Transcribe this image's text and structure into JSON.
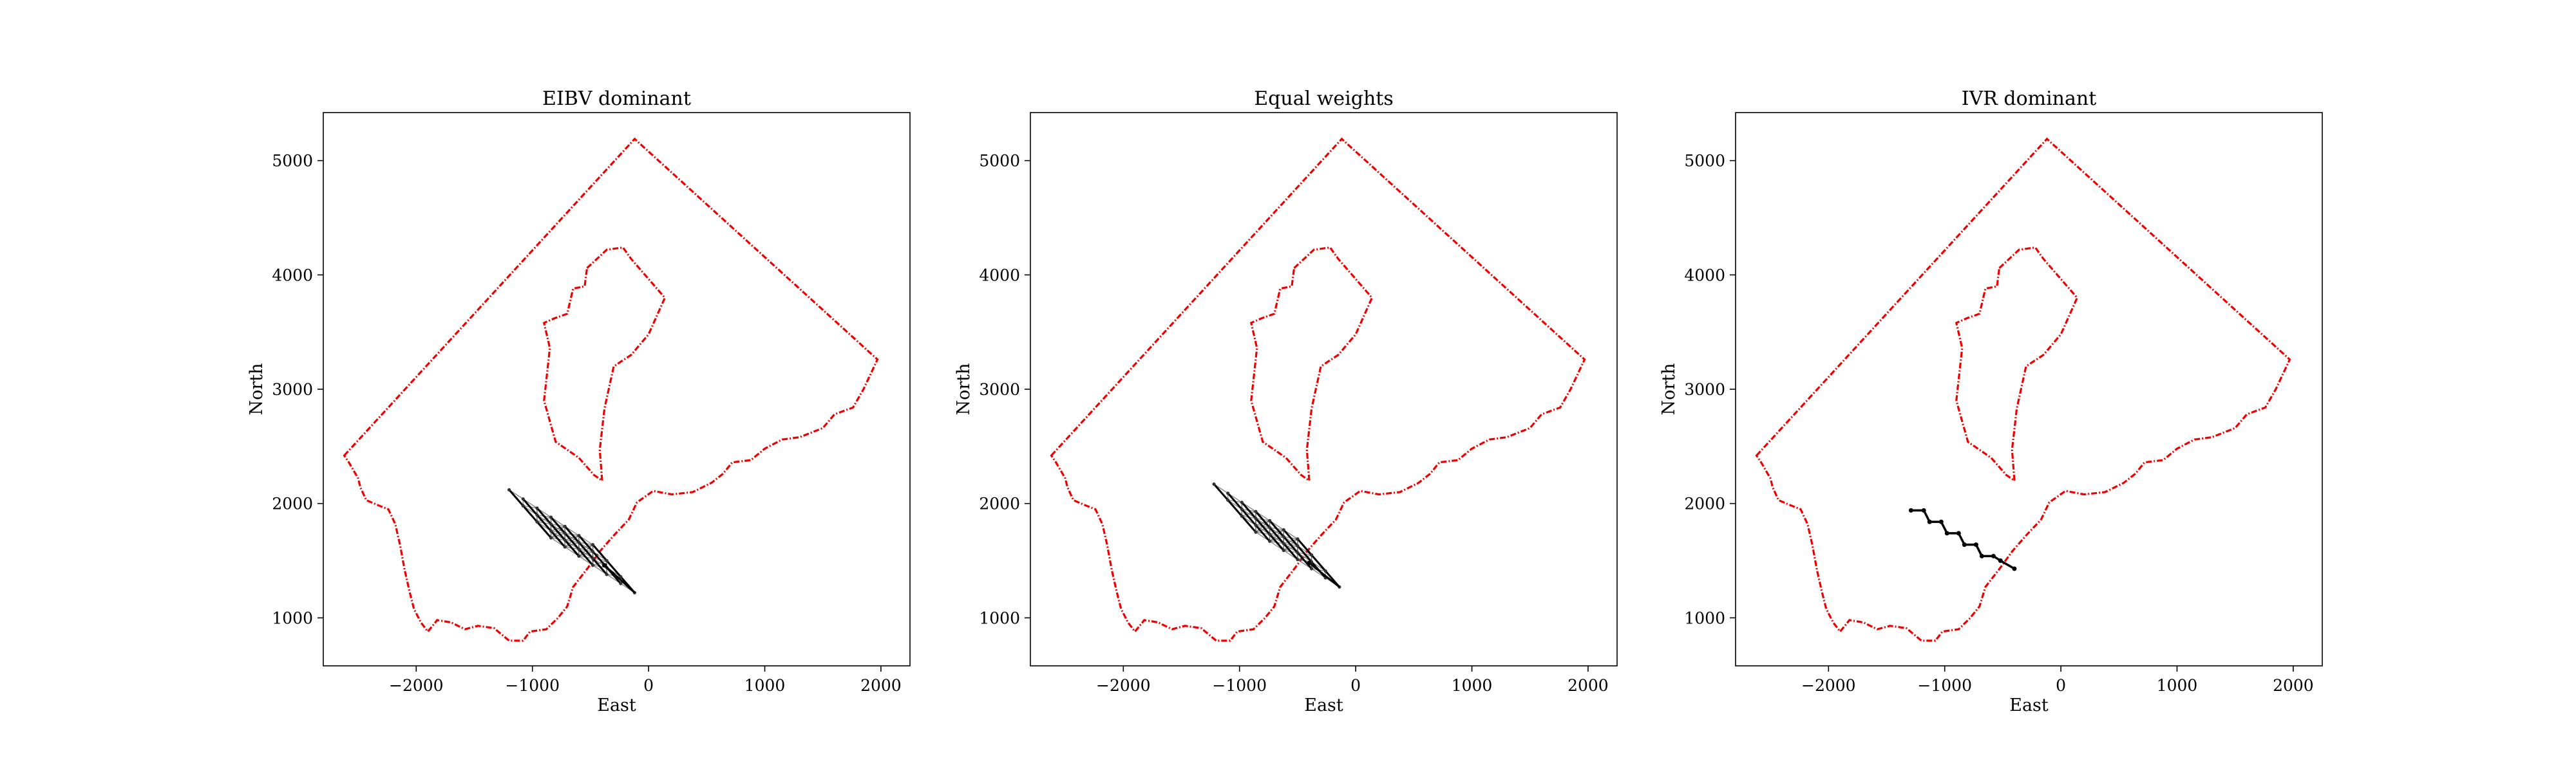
{
  "chart_data": [
    {
      "type": "line",
      "title": "EIBV dominant",
      "xlabel": "East",
      "ylabel": "North",
      "xlim": [
        -2800,
        2250
      ],
      "ylim": [
        580,
        5420
      ],
      "xticks": [
        -2000,
        -1000,
        0,
        1000,
        2000
      ],
      "yticks": [
        1000,
        2000,
        3000,
        4000,
        5000
      ],
      "xtick_labels": [
        "−2000",
        "−1000",
        "0",
        "1000",
        "2000"
      ],
      "ytick_labels": [
        "1000",
        "2000",
        "3000",
        "4000",
        "5000"
      ],
      "grid": false,
      "path_kind": "lattice",
      "path_origin": [
        -1200,
        2120
      ],
      "path_step": [
        120,
        60
      ],
      "path_end": [
        -380,
        1460
      ]
    },
    {
      "type": "line",
      "title": "Equal weights",
      "xlabel": "East",
      "ylabel": "North",
      "xlim": [
        -2800,
        2250
      ],
      "ylim": [
        580,
        5420
      ],
      "xticks": [
        -2000,
        -1000,
        0,
        1000,
        2000
      ],
      "yticks": [
        1000,
        2000,
        3000,
        4000,
        5000
      ],
      "xtick_labels": [
        "−2000",
        "−1000",
        "0",
        "1000",
        "2000"
      ],
      "ytick_labels": [
        "1000",
        "2000",
        "3000",
        "4000",
        "5000"
      ],
      "grid": false,
      "path_kind": "lattice",
      "path_origin": [
        -1220,
        2170
      ],
      "path_step": [
        120,
        60
      ],
      "path_end": [
        -400,
        1480
      ]
    },
    {
      "type": "line",
      "title": "IVR dominant",
      "xlabel": "East",
      "ylabel": "North",
      "xlim": [
        -2800,
        2250
      ],
      "ylim": [
        580,
        5420
      ],
      "xticks": [
        -2000,
        -1000,
        0,
        1000,
        2000
      ],
      "yticks": [
        1000,
        2000,
        3000,
        4000,
        5000
      ],
      "xtick_labels": [
        "−2000",
        "−1000",
        "0",
        "1000",
        "2000"
      ],
      "ytick_labels": [
        "1000",
        "2000",
        "3000",
        "4000",
        "5000"
      ],
      "grid": false,
      "path_kind": "path",
      "path": [
        [
          -1290,
          1940
        ],
        [
          -1180,
          1940
        ],
        [
          -1130,
          1840
        ],
        [
          -1030,
          1840
        ],
        [
          -980,
          1740
        ],
        [
          -880,
          1740
        ],
        [
          -830,
          1640
        ],
        [
          -730,
          1640
        ],
        [
          -680,
          1540
        ],
        [
          -580,
          1540
        ],
        [
          -520,
          1500
        ],
        [
          -400,
          1430
        ]
      ]
    }
  ],
  "boundary": {
    "outer": [
      [
        -2620,
        2420
      ],
      [
        -120,
        5190
      ],
      [
        1970,
        3260
      ],
      [
        1850,
        3000
      ],
      [
        1760,
        2840
      ],
      [
        1600,
        2780
      ],
      [
        1500,
        2660
      ],
      [
        1300,
        2580
      ],
      [
        1150,
        2560
      ],
      [
        1000,
        2480
      ],
      [
        880,
        2380
      ],
      [
        720,
        2360
      ],
      [
        640,
        2260
      ],
      [
        540,
        2180
      ],
      [
        380,
        2100
      ],
      [
        200,
        2080
      ],
      [
        40,
        2110
      ],
      [
        -100,
        2010
      ],
      [
        -170,
        1860
      ],
      [
        -300,
        1720
      ],
      [
        -420,
        1580
      ],
      [
        -520,
        1440
      ],
      [
        -650,
        1270
      ],
      [
        -700,
        1100
      ],
      [
        -780,
        1000
      ],
      [
        -880,
        900
      ],
      [
        -1020,
        880
      ],
      [
        -1080,
        800
      ],
      [
        -1200,
        800
      ],
      [
        -1330,
        910
      ],
      [
        -1470,
        930
      ],
      [
        -1580,
        900
      ],
      [
        -1700,
        960
      ],
      [
        -1820,
        980
      ],
      [
        -1900,
        880
      ],
      [
        -1960,
        960
      ],
      [
        -2020,
        1080
      ],
      [
        -2060,
        1240
      ],
      [
        -2100,
        1420
      ],
      [
        -2140,
        1640
      ],
      [
        -2180,
        1820
      ],
      [
        -2240,
        1950
      ],
      [
        -2340,
        1990
      ],
      [
        -2430,
        2030
      ],
      [
        -2480,
        2140
      ],
      [
        -2500,
        2220
      ],
      [
        -2580,
        2360
      ],
      [
        -2620,
        2420
      ]
    ],
    "island": [
      [
        -530,
        4060
      ],
      [
        -360,
        4220
      ],
      [
        -220,
        4240
      ],
      [
        -150,
        4140
      ],
      [
        140,
        3800
      ],
      [
        0,
        3480
      ],
      [
        -150,
        3300
      ],
      [
        -300,
        3200
      ],
      [
        -380,
        2830
      ],
      [
        -420,
        2470
      ],
      [
        -400,
        2200
      ],
      [
        -470,
        2250
      ],
      [
        -600,
        2400
      ],
      [
        -800,
        2540
      ],
      [
        -900,
        2900
      ],
      [
        -850,
        3360
      ],
      [
        -900,
        3580
      ],
      [
        -810,
        3620
      ],
      [
        -700,
        3660
      ],
      [
        -650,
        3880
      ],
      [
        -550,
        3900
      ],
      [
        -530,
        4060
      ]
    ]
  }
}
